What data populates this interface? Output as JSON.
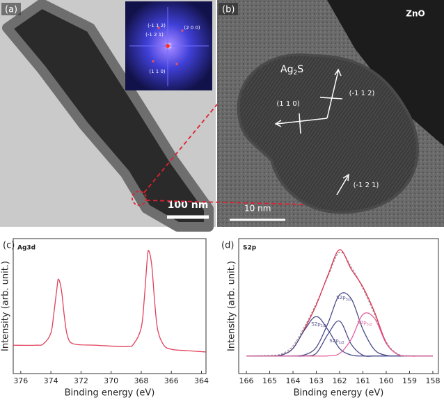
{
  "panels": {
    "a": {
      "label": "(a)",
      "scale_bar": "100 nm",
      "inset_labels": [
        "(-1 1 2)",
        "(2 0 0)",
        "(-1 2 1)",
        "(1 1 0)"
      ]
    },
    "b": {
      "label": "(b)",
      "material": "ZnO",
      "phase": [
        "Ag",
        "2",
        "S"
      ],
      "planes": [
        "(-1 1 2)",
        "(1 1 0)",
        "(-1 2 1)"
      ],
      "scale_bar": "10 nm"
    }
  },
  "chart_data": [
    {
      "type": "line",
      "panel_label": "(c)",
      "title": "Ag3d",
      "x_label": "Binding energy (eV)",
      "y_label": "Intensity (arb. unit.)",
      "x": [
        376.5,
        375,
        374.5,
        374,
        373.8,
        373.6,
        373.5,
        373.3,
        373.1,
        372.9,
        372.5,
        371,
        369,
        368.5,
        368,
        367.8,
        367.6,
        367.5,
        367.3,
        367.1,
        366.9,
        366.5,
        366,
        365,
        363.7
      ],
      "series": [
        {
          "color": "#e0405a",
          "values": [
            21,
            21,
            22,
            30,
            45,
            63,
            70,
            62,
            42,
            28,
            22,
            21,
            20,
            22,
            34,
            55,
            85,
            91,
            80,
            52,
            32,
            21,
            18,
            17,
            16
          ]
        }
      ],
      "xlim": [
        376.5,
        363.7
      ],
      "xticks": [
        376,
        374,
        372,
        370,
        368,
        366,
        364
      ],
      "ylim": [
        0,
        100
      ]
    },
    {
      "type": "line",
      "panel_label": "(d)",
      "title": "S2p",
      "x_label": "Binding energy (eV)",
      "y_label": "Intensity (arb. unit.)",
      "x": [
        166,
        165.5,
        165,
        164.5,
        164,
        163.5,
        163,
        162.5,
        162,
        161.5,
        161,
        160.5,
        160,
        159.5,
        159,
        158.5,
        158
      ],
      "series": [
        {
          "color": "#999999",
          "dashed": true,
          "values": [
            13,
            13.2,
            13.5,
            14.5,
            20.5,
            35,
            52,
            72,
            90,
            79,
            63,
            44,
            23.5,
            14.5,
            13.2,
            13,
            13
          ]
        },
        {
          "color": "#e03050",
          "values": [
            13,
            13,
            13,
            13.7,
            18.7,
            33.3,
            50.9,
            73,
            91.8,
            77.3,
            64.1,
            45.5,
            22.8,
            14.1,
            13,
            13,
            13
          ]
        },
        {
          "color": "#4a4a8a",
          "label": [
            "S2p",
            "3/2"
          ],
          "values": [
            13,
            13,
            13,
            13,
            13.1,
            13.9,
            19.5,
            37.3,
            58.4,
            55.4,
            32.7,
            17.6,
            13.5,
            13,
            13,
            13,
            13
          ]
        },
        {
          "color": "#4a4a8a",
          "label": [
            "S2p",
            "1/2"
          ],
          "values": [
            13,
            13,
            13,
            13.7,
            18.6,
            32.4,
            42.3,
            32.4,
            18.6,
            13.7,
            13,
            13,
            13,
            13,
            13,
            13,
            13
          ]
        },
        {
          "color": "#4a4a8a",
          "label": [
            "S2p",
            "1/2"
          ],
          "values": [
            13,
            13,
            13,
            13,
            13,
            13.1,
            15.1,
            29.2,
            38.9,
            21.7,
            13.6,
            13,
            13,
            13,
            13,
            13,
            13
          ]
        },
        {
          "color": "#e0609a",
          "label": [
            "S2p",
            "3/2"
          ],
          "values": [
            13,
            13,
            13,
            13,
            13,
            13,
            13,
            13.1,
            14.9,
            25.5,
            43.8,
            40.9,
            22.3,
            14.1,
            13,
            13,
            13
          ]
        }
      ],
      "xlim": [
        166.33,
        157.76
      ],
      "xticks": [
        166,
        165,
        164,
        163,
        162,
        161,
        160,
        159,
        158
      ],
      "ylim": [
        0,
        100
      ]
    }
  ]
}
